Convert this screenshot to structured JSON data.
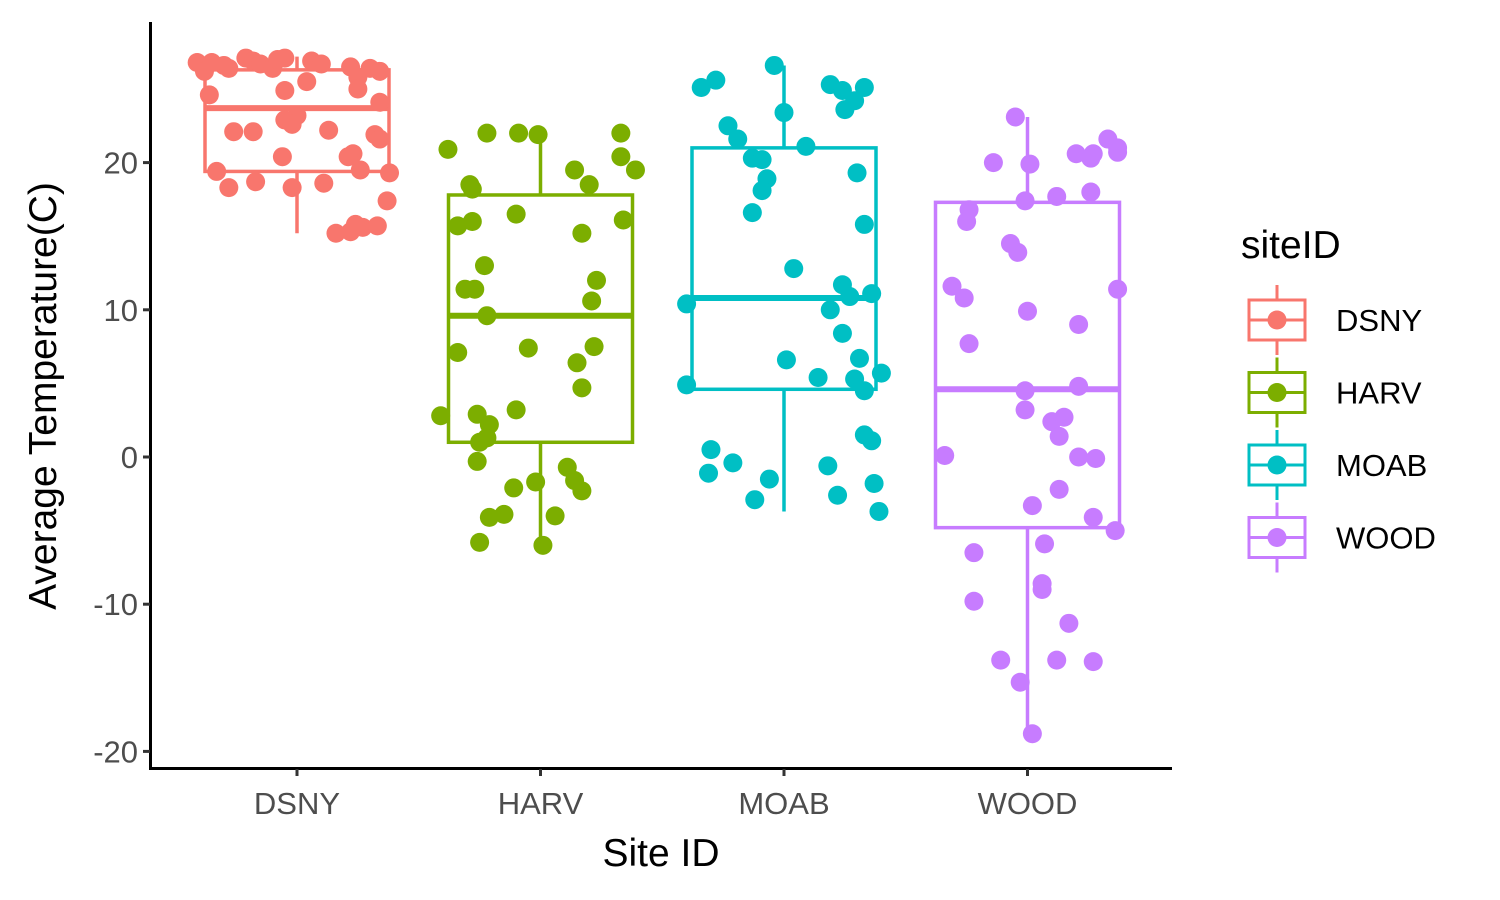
{
  "chart_data": {
    "type": "boxplot",
    "xlabel": "Site ID",
    "ylabel": "Average Temperature(C)",
    "ylim": [
      -20.6,
      29.3
    ],
    "yticks": [
      -20,
      -10,
      0,
      10,
      20
    ],
    "ytick_labels": [
      "-20",
      "-10",
      "0",
      "10",
      "20"
    ],
    "categories": [
      "DSNY",
      "HARV",
      "MOAB",
      "WOOD"
    ],
    "legend": {
      "title": "siteID",
      "position": "right"
    },
    "grid": false,
    "series": [
      {
        "name": "DSNY",
        "color": "#F8766D",
        "box": {
          "lower_whisker": 15.2,
          "q1": 19.4,
          "median": 23.7,
          "q3": 26.3,
          "upper_whisker": 27.2
        },
        "points": [
          [
            -0.41,
            26.8
          ],
          [
            -0.38,
            26.2
          ],
          [
            -0.35,
            26.8
          ],
          [
            -0.3,
            26.6
          ],
          [
            -0.28,
            26.4
          ],
          [
            -0.21,
            27.1
          ],
          [
            -0.18,
            26.9
          ],
          [
            -0.15,
            26.7
          ],
          [
            -0.1,
            26.4
          ],
          [
            -0.08,
            27.0
          ],
          [
            -0.05,
            27.1
          ],
          [
            0.06,
            26.9
          ],
          [
            0.1,
            26.7
          ],
          [
            0.22,
            26.5
          ],
          [
            0.25,
            25.8
          ],
          [
            0.3,
            26.4
          ],
          [
            0.34,
            26.2
          ],
          [
            -0.36,
            24.6
          ],
          [
            0.0,
            23.2
          ],
          [
            0.04,
            25.5
          ],
          [
            -0.05,
            24.9
          ],
          [
            0.25,
            25.0
          ],
          [
            -0.26,
            22.1
          ],
          [
            -0.18,
            22.1
          ],
          [
            -0.05,
            22.9
          ],
          [
            -0.02,
            22.6
          ],
          [
            0.13,
            22.2
          ],
          [
            0.32,
            21.9
          ],
          [
            0.34,
            24.1
          ],
          [
            0.23,
            20.6
          ],
          [
            0.21,
            20.4
          ],
          [
            0.34,
            21.6
          ],
          [
            0.26,
            19.5
          ],
          [
            -0.33,
            19.4
          ],
          [
            -0.06,
            20.4
          ],
          [
            0.38,
            19.3
          ],
          [
            -0.28,
            18.3
          ],
          [
            -0.17,
            18.7
          ],
          [
            -0.02,
            18.3
          ],
          [
            0.11,
            18.6
          ],
          [
            0.37,
            17.4
          ],
          [
            0.16,
            15.2
          ],
          [
            0.22,
            15.3
          ],
          [
            0.27,
            15.6
          ],
          [
            0.33,
            15.7
          ],
          [
            0.24,
            15.8
          ]
        ]
      },
      {
        "name": "HARV",
        "color": "#7CAE00",
        "box": {
          "lower_whisker": -6.0,
          "q1": 1.0,
          "median": 9.6,
          "q3": 17.8,
          "upper_whisker": 22.0
        },
        "points": [
          [
            -0.38,
            20.9
          ],
          [
            -0.22,
            22.0
          ],
          [
            -0.09,
            22.0
          ],
          [
            -0.01,
            21.9
          ],
          [
            0.33,
            22.0
          ],
          [
            0.33,
            20.4
          ],
          [
            0.39,
            19.5
          ],
          [
            0.14,
            19.5
          ],
          [
            0.2,
            18.5
          ],
          [
            -0.28,
            18.2
          ],
          [
            -0.29,
            18.5
          ],
          [
            -0.1,
            16.5
          ],
          [
            -0.28,
            16.0
          ],
          [
            0.34,
            16.1
          ],
          [
            -0.34,
            15.7
          ],
          [
            0.17,
            15.2
          ],
          [
            -0.23,
            13.0
          ],
          [
            0.23,
            12.0
          ],
          [
            -0.31,
            11.4
          ],
          [
            -0.27,
            11.4
          ],
          [
            0.21,
            10.6
          ],
          [
            -0.22,
            9.6
          ],
          [
            -0.05,
            7.4
          ],
          [
            0.22,
            7.5
          ],
          [
            -0.34,
            7.1
          ],
          [
            0.15,
            6.4
          ],
          [
            0.17,
            4.7
          ],
          [
            -0.41,
            2.8
          ],
          [
            -0.26,
            2.9
          ],
          [
            -0.21,
            2.2
          ],
          [
            -0.1,
            3.2
          ],
          [
            -0.25,
            1.0
          ],
          [
            -0.22,
            1.3
          ],
          [
            -0.26,
            -0.3
          ],
          [
            0.11,
            -0.7
          ],
          [
            0.14,
            -1.6
          ],
          [
            0.17,
            -2.3
          ],
          [
            -0.02,
            -1.7
          ],
          [
            -0.11,
            -2.1
          ],
          [
            0.06,
            -4.0
          ],
          [
            -0.15,
            -3.9
          ],
          [
            -0.21,
            -4.1
          ],
          [
            0.01,
            -6.0
          ],
          [
            -0.25,
            -5.8
          ]
        ]
      },
      {
        "name": "MOAB",
        "color": "#00BFC4",
        "box": {
          "lower_whisker": -3.7,
          "q1": 4.6,
          "median": 10.8,
          "q3": 21.0,
          "upper_whisker": 26.6
        },
        "points": [
          [
            -0.34,
            25.1
          ],
          [
            -0.28,
            25.6
          ],
          [
            -0.04,
            26.6
          ],
          [
            0.19,
            25.3
          ],
          [
            0.24,
            24.9
          ],
          [
            0.29,
            24.2
          ],
          [
            0.33,
            25.1
          ],
          [
            0.25,
            23.6
          ],
          [
            0.0,
            23.4
          ],
          [
            -0.23,
            22.5
          ],
          [
            -0.19,
            21.6
          ],
          [
            0.09,
            21.1
          ],
          [
            -0.13,
            20.3
          ],
          [
            -0.09,
            20.2
          ],
          [
            -0.07,
            18.9
          ],
          [
            -0.09,
            18.1
          ],
          [
            -0.13,
            16.6
          ],
          [
            0.3,
            19.3
          ],
          [
            0.33,
            15.8
          ],
          [
            0.04,
            12.8
          ],
          [
            0.24,
            11.7
          ],
          [
            0.27,
            10.9
          ],
          [
            0.36,
            11.1
          ],
          [
            0.19,
            10.0
          ],
          [
            -0.4,
            10.4
          ],
          [
            0.24,
            8.4
          ],
          [
            0.31,
            6.7
          ],
          [
            0.4,
            5.7
          ],
          [
            0.01,
            6.6
          ],
          [
            0.14,
            5.4
          ],
          [
            0.29,
            5.3
          ],
          [
            -0.4,
            4.9
          ],
          [
            0.33,
            4.5
          ],
          [
            0.33,
            1.5
          ],
          [
            0.36,
            1.1
          ],
          [
            -0.3,
            0.5
          ],
          [
            -0.21,
            -0.4
          ],
          [
            -0.31,
            -1.1
          ],
          [
            0.18,
            -0.6
          ],
          [
            -0.06,
            -1.5
          ],
          [
            -0.12,
            -2.9
          ],
          [
            0.22,
            -2.6
          ],
          [
            0.37,
            -1.8
          ],
          [
            0.39,
            -3.7
          ]
        ]
      },
      {
        "name": "WOOD",
        "color": "#C77CFF",
        "box": {
          "lower_whisker": -18.8,
          "q1": -4.8,
          "median": 4.6,
          "q3": 17.3,
          "upper_whisker": 23.1
        },
        "points": [
          [
            -0.05,
            23.1
          ],
          [
            0.33,
            21.6
          ],
          [
            0.37,
            21.0
          ],
          [
            0.37,
            20.7
          ],
          [
            0.27,
            20.6
          ],
          [
            -0.14,
            20.0
          ],
          [
            0.01,
            19.9
          ],
          [
            0.2,
            20.6
          ],
          [
            0.26,
            20.3
          ],
          [
            0.26,
            18.0
          ],
          [
            0.12,
            17.7
          ],
          [
            -0.01,
            17.4
          ],
          [
            -0.24,
            16.8
          ],
          [
            -0.25,
            16.0
          ],
          [
            -0.07,
            14.5
          ],
          [
            -0.04,
            13.9
          ],
          [
            -0.31,
            11.6
          ],
          [
            -0.26,
            10.8
          ],
          [
            0.37,
            11.4
          ],
          [
            0.0,
            9.9
          ],
          [
            0.21,
            9.0
          ],
          [
            -0.24,
            7.7
          ],
          [
            -0.34,
            0.1
          ],
          [
            -0.01,
            4.5
          ],
          [
            0.21,
            4.8
          ],
          [
            -0.01,
            3.2
          ],
          [
            0.1,
            2.4
          ],
          [
            0.15,
            2.7
          ],
          [
            0.13,
            1.4
          ],
          [
            0.21,
            0.0
          ],
          [
            0.28,
            -0.1
          ],
          [
            0.13,
            -2.2
          ],
          [
            0.02,
            -3.3
          ],
          [
            0.27,
            -4.1
          ],
          [
            0.36,
            -5.0
          ],
          [
            0.07,
            -5.9
          ],
          [
            -0.22,
            -6.5
          ],
          [
            -0.22,
            -9.8
          ],
          [
            0.06,
            -8.6
          ],
          [
            0.06,
            -9.0
          ],
          [
            0.17,
            -11.3
          ],
          [
            -0.11,
            -13.8
          ],
          [
            0.12,
            -13.8
          ],
          [
            0.27,
            -13.9
          ],
          [
            -0.03,
            -15.3
          ],
          [
            0.02,
            -18.8
          ]
        ]
      }
    ]
  }
}
